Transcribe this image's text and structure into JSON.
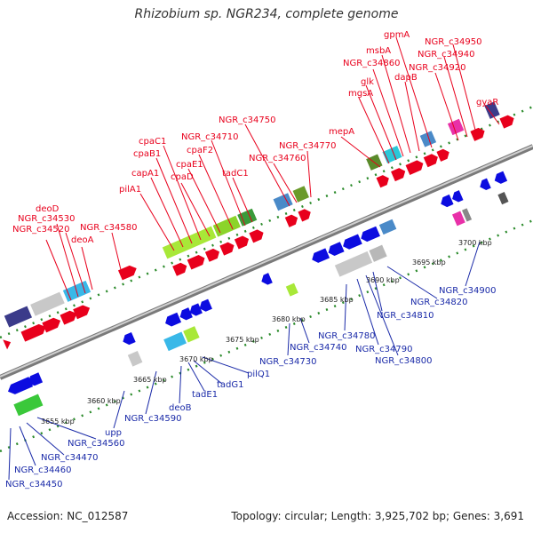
{
  "title": "Rhizobium sp. NGR234, complete genome",
  "footer": {
    "accession": "Accession: NC_012587",
    "stats": "Topology: circular; Length: 3,925,702 bp; Genes: 3,691"
  },
  "colors": {
    "forward_gene": "#e8001c",
    "reverse_gene": "#0c0ce0",
    "label_forward": "#e8001c",
    "label_reverse": "#1a2aa8",
    "backbone": "#8a8a8a",
    "tick": "#2a8a2a"
  },
  "kbp_labels": [
    "3655 kbp",
    "3660 kbp",
    "3665 kbp",
    "3670 kbp",
    "3675 kbp",
    "3680 kbp",
    "3685 kbp",
    "3690 kbp",
    "3695 kbp",
    "3700 kbp"
  ],
  "forward_labels": [
    "deoD",
    "NGR_c34530",
    "NGR_c34520",
    "deoA",
    "NGR_c34580",
    "pilA1",
    "capA1",
    "cpaB1",
    "cpaC1",
    "cpaD",
    "cpaE1",
    "cpaF2",
    "NGR_c34710",
    "tadC1",
    "NGR_c34750",
    "NGR_c34760",
    "NGR_c34770",
    "mepA",
    "mgsA",
    "glk",
    "NGR_c34860",
    "msbA",
    "gpmA",
    "dapB",
    "NGR_c34920",
    "NGR_c34940",
    "NGR_c34950",
    "gyaR"
  ],
  "reverse_labels": [
    "NGR_c34450",
    "NGR_c34460",
    "NGR_c34470",
    "NGR_c34560",
    "upp",
    "NGR_c34590",
    "deoB",
    "tadE1",
    "tadG1",
    "pilQ1",
    "NGR_c34730",
    "NGR_c34740",
    "NGR_c34780",
    "NGR_c34790",
    "NGR_c34800",
    "NGR_c34810",
    "NGR_c34820",
    "NGR_c34900"
  ]
}
